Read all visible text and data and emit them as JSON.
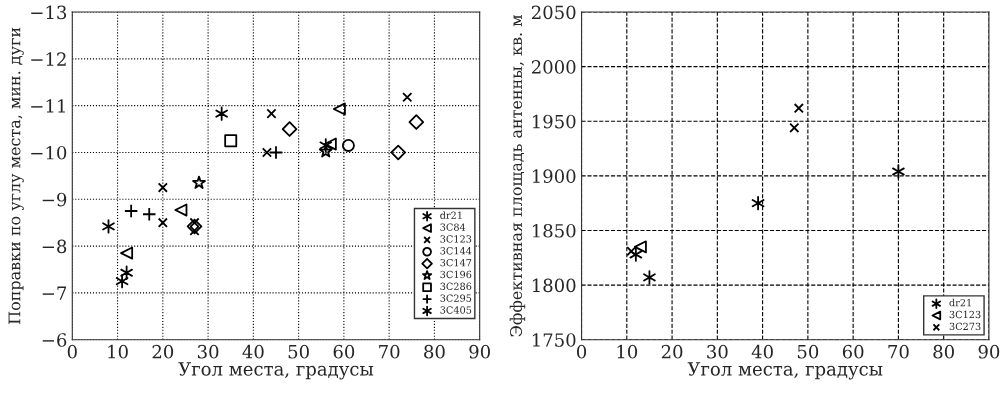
{
  "chart_data": [
    {
      "type": "scatter",
      "xlabel": "Угол места, градусы",
      "ylabel": "Поправки по углу места, мин. дуги",
      "xlim": [
        0,
        90
      ],
      "xticks": [
        0,
        10,
        20,
        30,
        40,
        50,
        60,
        70,
        80,
        90
      ],
      "ylim": [
        -6,
        -13
      ],
      "yticks": [
        {
          "value": -13,
          "label": "−13"
        },
        {
          "value": -12,
          "label": "−12"
        },
        {
          "value": -11,
          "label": "−11"
        },
        {
          "value": -10,
          "label": "−10"
        },
        {
          "value": -9,
          "label": "−9"
        },
        {
          "value": -8,
          "label": "−8"
        },
        {
          "value": -7,
          "label": "−7"
        },
        {
          "value": -6,
          "label": "−6"
        }
      ],
      "grid": true,
      "line_style": "dotted",
      "legend": "right",
      "series": [
        {
          "name": "dr21",
          "color": "#000000",
          "x": [
            8,
            33,
            56,
            12
          ],
          "values": [
            -8.42,
            -10.83,
            -10.15,
            -7.43
          ]
        },
        {
          "name": "3C84",
          "color": "#000000",
          "marker": "triangle",
          "x": [
            12,
            24,
            57,
            59
          ],
          "values": [
            -7.85,
            -8.77,
            -10.18,
            -10.93
          ]
        },
        {
          "name": "3C123",
          "color": "#000000",
          "marker": "cross",
          "x": [
            20,
            20,
            27,
            27,
            43,
            44,
            74
          ],
          "values": [
            -9.25,
            -8.5,
            -8.5,
            -8.33,
            -10.0,
            -10.83,
            -11.18
          ]
        },
        {
          "name": "3C144",
          "color": "#000000",
          "marker": "circle",
          "x": [
            61
          ],
          "values": [
            -10.15
          ]
        },
        {
          "name": "3C147",
          "color": "#000000",
          "marker": "diamond",
          "x": [
            27,
            48,
            72,
            76
          ],
          "values": [
            -8.42,
            -10.5,
            -10.0,
            -10.65
          ]
        },
        {
          "name": "3C196",
          "color": "#000000",
          "marker": "star",
          "x": [
            28,
            56
          ],
          "values": [
            -9.35,
            -10.02
          ]
        },
        {
          "name": "3C286",
          "color": "#000000",
          "marker": "square",
          "x": [
            35
          ],
          "values": [
            -10.25
          ]
        },
        {
          "name": "3C295",
          "color": "#000000",
          "marker": "plus",
          "x": [
            13,
            17,
            45
          ],
          "values": [
            -8.75,
            -8.68,
            -10.0
          ]
        },
        {
          "name": "3C405",
          "color": "#000000",
          "x": [
            11
          ],
          "values": [
            -7.25
          ]
        }
      ]
    },
    {
      "type": "scatter",
      "xlabel": "Угол места, градусы",
      "ylabel": "Эффективная площадь антенны, кв. м",
      "xlim": [
        0,
        90
      ],
      "xticks": [
        0,
        10,
        20,
        30,
        40,
        50,
        60,
        70,
        80,
        90
      ],
      "ylim": [
        1750,
        2050
      ],
      "yticks": [
        1750,
        1800,
        1850,
        1900,
        1950,
        2000,
        2050
      ],
      "grid": true,
      "line_style": "dashed",
      "legend": "bottom right",
      "series": [
        {
          "name": "dr21",
          "color": "#000000",
          "x": [
            12,
            15,
            39,
            70
          ],
          "values": [
            1828,
            1807,
            1875,
            1904
          ]
        },
        {
          "name": "3C123",
          "color": "#000000",
          "marker": "triangle",
          "x": [
            13
          ],
          "values": [
            1835
          ]
        },
        {
          "name": "3C273",
          "color": "#000000",
          "marker": "cross",
          "x": [
            11,
            47,
            48
          ],
          "values": [
            1831,
            1944,
            1962
          ]
        }
      ]
    }
  ]
}
